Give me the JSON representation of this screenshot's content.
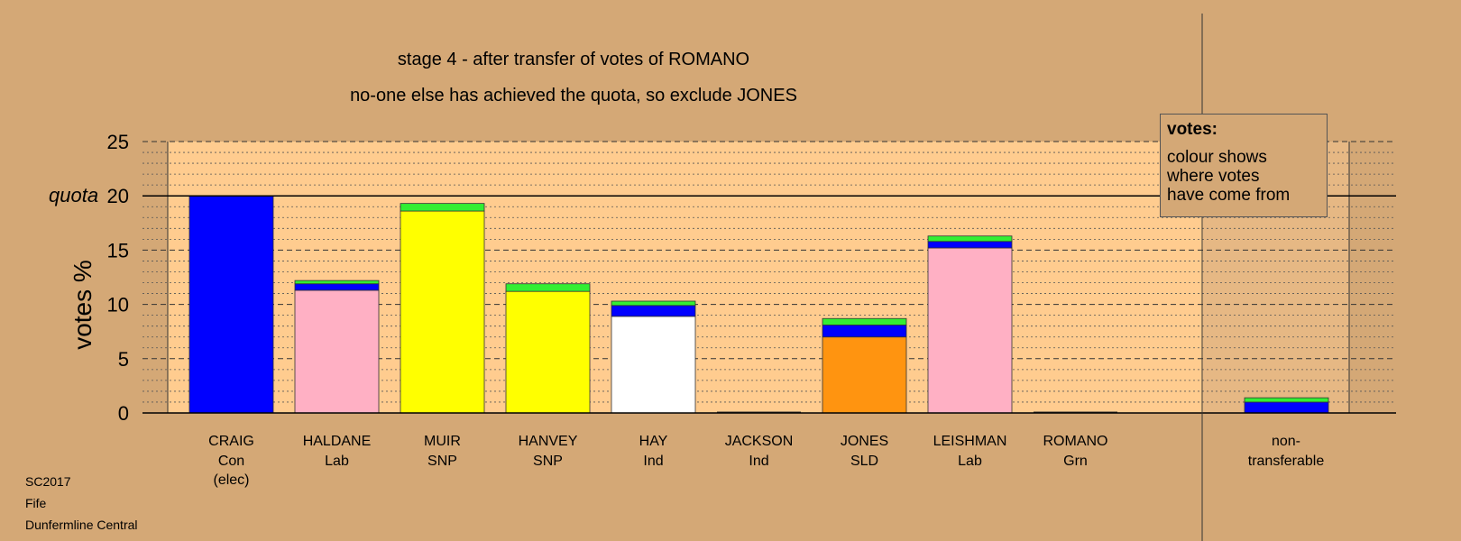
{
  "chart_data": {
    "type": "bar",
    "title": "stage 4 - after transfer of votes of ROMANO",
    "subtitle": "no-one else has achieved the quota, so exclude JONES",
    "ylabel": "votes %",
    "ylim": [
      0,
      25
    ],
    "yticks": [
      0,
      5,
      10,
      15,
      20,
      25
    ],
    "quota": 20,
    "quota_label": "quota",
    "grid": true,
    "legend": {
      "title": "votes:",
      "lines": [
        "colour shows",
        "where votes",
        "have come from"
      ],
      "placement": "top-right"
    },
    "colors": {
      "Con": "#0000ff",
      "Lab": "#ffb0c4",
      "SNP": "#ffff00",
      "Ind": "#ffffff",
      "SLD": "#ff9410",
      "Grn": "#33ee33",
      "plot_bg": "#ffcc8f",
      "page_bg": "#d4a876"
    },
    "candidates": [
      {
        "name": "CRAIG",
        "party": "Con",
        "note": "(elec)",
        "segments": [
          {
            "from": "Con",
            "value": 20.0
          }
        ]
      },
      {
        "name": "HALDANE",
        "party": "Lab",
        "segments": [
          {
            "from": "Lab",
            "value": 11.3
          },
          {
            "from": "Con",
            "value": 0.6
          },
          {
            "from": "Grn",
            "value": 0.3
          }
        ]
      },
      {
        "name": "MUIR",
        "party": "SNP",
        "segments": [
          {
            "from": "SNP",
            "value": 18.6
          },
          {
            "from": "Grn",
            "value": 0.7
          }
        ]
      },
      {
        "name": "HANVEY",
        "party": "SNP",
        "segments": [
          {
            "from": "SNP",
            "value": 11.2
          },
          {
            "from": "Grn",
            "value": 0.7
          }
        ]
      },
      {
        "name": "HAY",
        "party": "Ind",
        "segments": [
          {
            "from": "Ind",
            "value": 8.9
          },
          {
            "from": "Con",
            "value": 1.0
          },
          {
            "from": "Grn",
            "value": 0.4
          }
        ]
      },
      {
        "name": "JACKSON",
        "party": "Ind",
        "segments": []
      },
      {
        "name": "JONES",
        "party": "SLD",
        "segments": [
          {
            "from": "SLD",
            "value": 7.0
          },
          {
            "from": "Con",
            "value": 1.1
          },
          {
            "from": "Grn",
            "value": 0.6
          }
        ]
      },
      {
        "name": "LEISHMAN",
        "party": "Lab",
        "segments": [
          {
            "from": "Lab",
            "value": 15.2
          },
          {
            "from": "Con",
            "value": 0.6
          },
          {
            "from": "Grn",
            "value": 0.5
          }
        ]
      },
      {
        "name": "ROMANO",
        "party": "Grn",
        "segments": []
      }
    ],
    "nontransferable": {
      "label_line1": "non-",
      "label_line2": "transferable",
      "segments": [
        {
          "from": "Con",
          "value": 1.0
        },
        {
          "from": "Grn",
          "value": 0.4
        }
      ]
    }
  },
  "footer": {
    "line1": "SC2017",
    "line2": "Fife",
    "line3": "Dunfermline Central"
  }
}
